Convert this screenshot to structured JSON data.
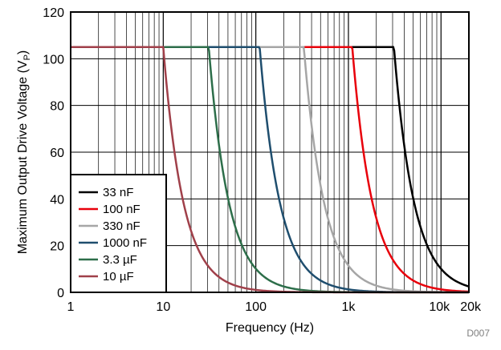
{
  "chart_data": {
    "type": "line",
    "xlabel": "Frequency (Hz)",
    "ylabel": "Maximum Output Drive Voltage (V",
    "ylabel_sub": "P",
    "ylabel_end": ")",
    "xscale": "log",
    "xlim": [
      1,
      20000
    ],
    "ylim": [
      0,
      120
    ],
    "grid": true,
    "legend_position": "bottom-left",
    "xticks": [
      {
        "value": 1,
        "label": "1"
      },
      {
        "value": 10,
        "label": "10"
      },
      {
        "value": 100,
        "label": "100"
      },
      {
        "value": 1000,
        "label": "1k"
      },
      {
        "value": 10000,
        "label": "10k"
      },
      {
        "value": 20000,
        "label": "20k"
      }
    ],
    "yticks": [
      0,
      20,
      40,
      60,
      80,
      100,
      120
    ],
    "series": [
      {
        "name": "33 nF",
        "color": "#000000",
        "vmax": 105,
        "corner_hz": 3100
      },
      {
        "name": "100 nF",
        "color": "#e8000b",
        "vmax": 105,
        "corner_hz": 1100
      },
      {
        "name": "330 nF",
        "color": "#a6a6a6",
        "vmax": 105,
        "corner_hz": 330
      },
      {
        "name": "1000 nF",
        "color": "#1f4e6e",
        "vmax": 105,
        "corner_hz": 110
      },
      {
        "name": "3.3 µF",
        "color": "#2d6e4a",
        "vmax": 105,
        "corner_hz": 31
      },
      {
        "name": "10 µF",
        "color": "#a0404a",
        "vmax": 105,
        "corner_hz": 10
      }
    ],
    "annotation": "D007"
  }
}
